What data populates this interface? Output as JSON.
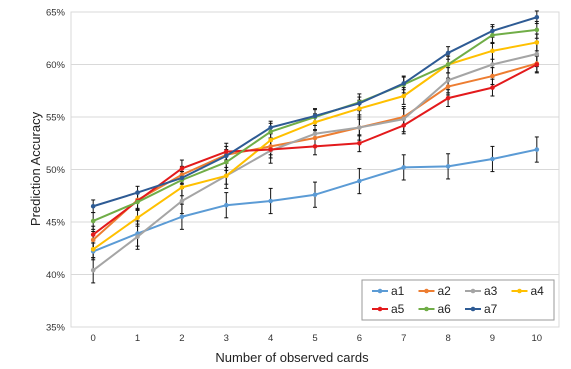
{
  "chart_data": {
    "type": "line",
    "title": "",
    "xlabel": "Number of observed cards",
    "ylabel": "Prediction Accuracy",
    "x": [
      0,
      1,
      2,
      3,
      4,
      5,
      6,
      7,
      8,
      9,
      10
    ],
    "xlim": [
      -0.5,
      10.5
    ],
    "ylim": [
      35,
      65
    ],
    "yticks": [
      35,
      40,
      45,
      50,
      55,
      60,
      65
    ],
    "ytick_labels": [
      "35%",
      "40%",
      "45%",
      "50%",
      "55%",
      "60%",
      "65%"
    ],
    "xtick_labels": [
      "0",
      "1",
      "2",
      "3",
      "4",
      "5",
      "6",
      "7",
      "8",
      "9",
      "10"
    ],
    "grid": "horizontal",
    "legend_position": "bottom-right",
    "series": [
      {
        "name": "a1",
        "color": "#5b9bd5",
        "values": [
          42.2,
          43.9,
          45.5,
          46.6,
          47.0,
          47.6,
          48.9,
          50.2,
          50.3,
          51.0,
          51.9
        ],
        "errors": [
          0.8,
          1.2,
          1.2,
          1.2,
          1.2,
          1.2,
          1.2,
          1.2,
          1.2,
          1.2,
          1.2
        ]
      },
      {
        "name": "a2",
        "color": "#ed7d31",
        "values": [
          43.3,
          47.1,
          49.5,
          51.4,
          52.2,
          53.0,
          54.0,
          55.0,
          57.9,
          58.9,
          60.1
        ],
        "errors": [
          0.8,
          0.8,
          0.8,
          0.8,
          0.8,
          0.8,
          0.8,
          0.8,
          0.8,
          0.8,
          0.8
        ]
      },
      {
        "name": "a3",
        "color": "#a5a5a5",
        "values": [
          40.4,
          43.6,
          47.0,
          49.4,
          51.8,
          53.4,
          54.0,
          54.8,
          58.5,
          60.0,
          61.0
        ],
        "errors": [
          1.2,
          1.2,
          1.2,
          1.2,
          1.2,
          1.2,
          1.2,
          1.2,
          1.2,
          1.2,
          1.2
        ]
      },
      {
        "name": "a4",
        "color": "#ffc000",
        "values": [
          42.4,
          45.4,
          48.3,
          49.4,
          52.8,
          54.5,
          55.8,
          57.0,
          60.0,
          61.3,
          62.1
        ],
        "errors": [
          0.8,
          0.8,
          0.8,
          0.8,
          0.8,
          0.8,
          0.8,
          0.8,
          0.8,
          0.8,
          0.8
        ]
      },
      {
        "name": "a5",
        "color": "#e31a1c",
        "values": [
          43.8,
          47.0,
          50.1,
          51.7,
          51.9,
          52.2,
          52.5,
          54.2,
          56.8,
          57.8,
          60.0
        ],
        "errors": [
          0.8,
          0.8,
          0.8,
          0.8,
          0.8,
          0.8,
          0.8,
          0.8,
          0.8,
          0.8,
          0.8
        ]
      },
      {
        "name": "a6",
        "color": "#70ad47",
        "values": [
          45.1,
          46.9,
          49.0,
          50.7,
          53.6,
          55.0,
          56.4,
          58.1,
          60.0,
          62.8,
          63.3
        ],
        "errors": [
          0.8,
          0.8,
          0.8,
          0.8,
          0.8,
          0.8,
          0.8,
          0.8,
          0.8,
          0.8,
          0.8
        ]
      },
      {
        "name": "a7",
        "color": "#2e5b94",
        "values": [
          46.5,
          47.8,
          49.2,
          51.3,
          54.0,
          55.1,
          56.3,
          58.2,
          61.1,
          63.2,
          64.5
        ],
        "errors": [
          0.6,
          0.6,
          0.6,
          0.6,
          0.6,
          0.6,
          0.6,
          0.6,
          0.6,
          0.6,
          0.6
        ]
      }
    ]
  }
}
